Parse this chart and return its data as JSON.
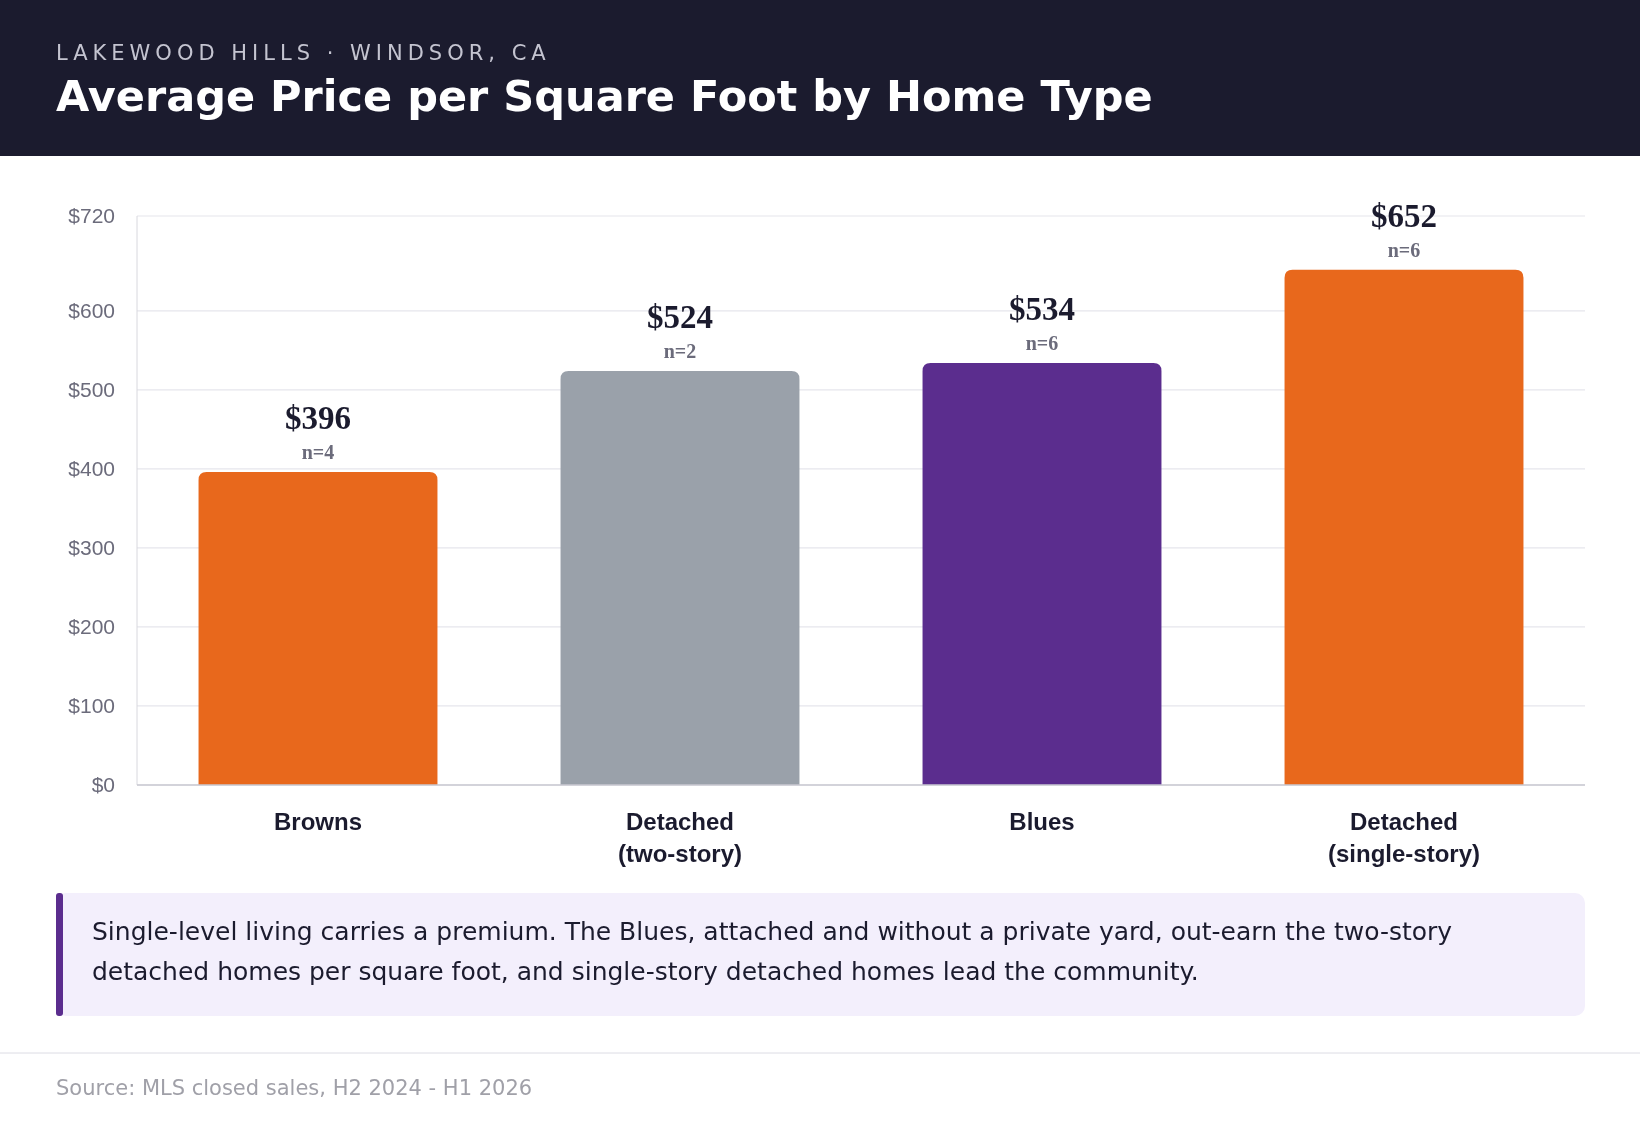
{
  "chart_data": {
    "type": "bar",
    "subtitle": "LAKEWOOD HILLS · WINDSOR, CA",
    "title": "Average Price per Square Foot by Home Type",
    "categories": [
      "Browns",
      "Detached (two-story)",
      "Blues",
      "Detached (single-story)"
    ],
    "values": [
      396,
      524,
      534,
      652
    ],
    "colors": [
      "#e8681c",
      "#9aa1aa",
      "#5b2d8e",
      "#e8681c"
    ],
    "value_labels": [
      "$396",
      "$524",
      "$534",
      "$652"
    ],
    "ylim": [
      0,
      720
    ],
    "yticks": [
      {
        "value": 0,
        "label": "$0"
      },
      {
        "value": 100,
        "label": "$100"
      },
      {
        "value": 200,
        "label": "$200"
      },
      {
        "value": 300,
        "label": "$300"
      },
      {
        "value": 400,
        "label": "$400"
      },
      {
        "value": 500,
        "label": "$500"
      },
      {
        "value": 600,
        "label": "$600"
      },
      {
        "value": 720,
        "label": "$720"
      }
    ],
    "grid": "y",
    "annotations": [
      {
        "text": "n=4",
        "x": "Browns",
        "y": 396
      },
      {
        "text": "n=2",
        "x": "Detached (two-story)",
        "y": 524
      },
      {
        "text": "n=6",
        "x": "Blues",
        "y": 534
      },
      {
        "text": "n=6",
        "x": "Detached (single-story)",
        "y": 652
      },
      "Single-level living carries a premium. The Blues, attached and without a private yard, out-earn the two-story detached homes per square foot, and single-story detached homes lead the community.",
      "Source: MLS closed sales, H2 2024 - H1 2026"
    ]
  }
}
